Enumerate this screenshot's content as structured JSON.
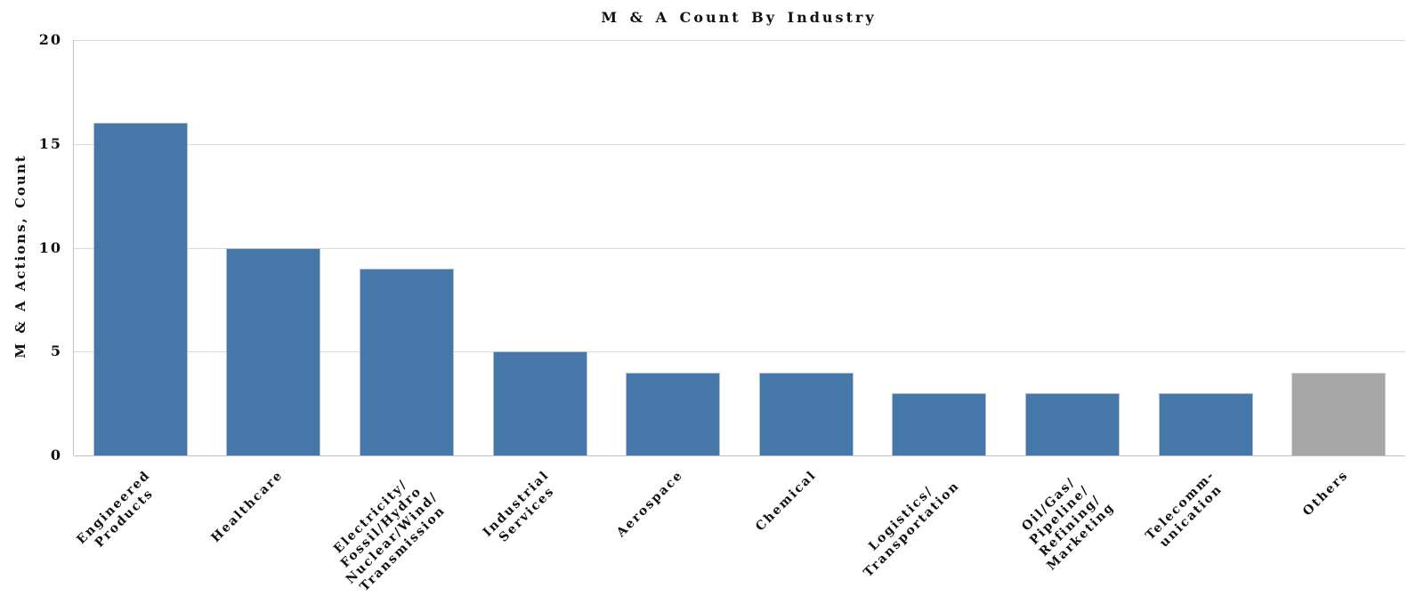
{
  "chart_data": {
    "type": "bar",
    "title": "M & A Count By Industry",
    "ylabel": "M & A Actions, Count",
    "xlabel": "",
    "ylim": [
      0,
      20
    ],
    "yticks": [
      0,
      5,
      10,
      15,
      20
    ],
    "grid": "horizontal",
    "legend": "none",
    "categories": [
      "Engineered\nProducts",
      "Healthcare",
      "Electricity/\nFossil/Hydro\nNuclear/Wind/\nTransmission",
      "Industrial\nServices",
      "Aerospace",
      "Chemical",
      "Logistics/\nTransportation",
      "Oil/Gas/\nPipeline/\nRefining/\nMarketing",
      "Telecomm-\nunication",
      "Others"
    ],
    "values": [
      16,
      10,
      9,
      5,
      4,
      4,
      3,
      3,
      3,
      4
    ],
    "bar_colors": [
      "#4677A9",
      "#4677A9",
      "#4677A9",
      "#4677A9",
      "#4677A9",
      "#4677A9",
      "#4677A9",
      "#4677A9",
      "#4677A9",
      "#A6A6A6"
    ],
    "colors": {
      "bar_primary": "#4677A9",
      "bar_others": "#A6A6A6",
      "gridline": "#D9D9D9",
      "axis_line": "#C3C3C3",
      "text": "#111111"
    }
  }
}
